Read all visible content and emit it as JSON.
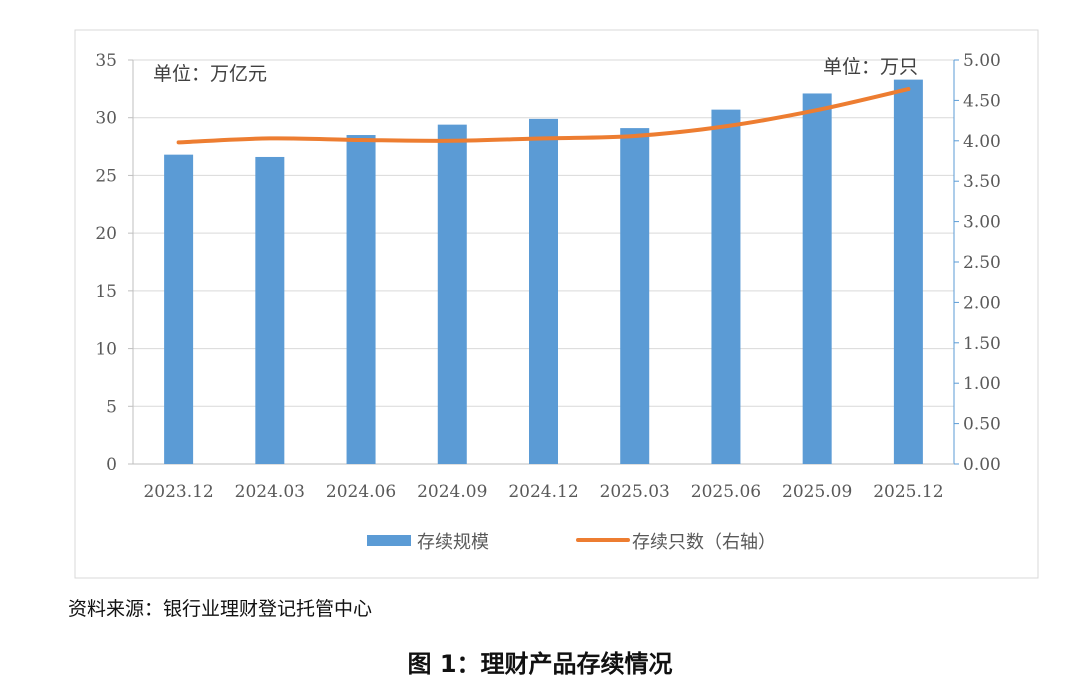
{
  "source_note": "资料来源：银行业理财登记托管中心",
  "figure_caption": "图 1：理财产品存续情况",
  "chart_data": {
    "type": "bar",
    "categories": [
      "2023.12",
      "2024.03",
      "2024.06",
      "2024.09",
      "2024.12",
      "2025.03",
      "2025.06",
      "2025.09",
      "2025.12"
    ],
    "series": [
      {
        "name": "存续规模",
        "type": "bar",
        "axis": "left",
        "color": "#5b9bd5",
        "values": [
          26.8,
          26.6,
          28.5,
          29.4,
          29.9,
          29.1,
          30.7,
          32.1,
          33.3
        ]
      },
      {
        "name": "存续只数（右轴）",
        "type": "line",
        "axis": "right",
        "color": "#ed7d31",
        "values": [
          3.98,
          4.03,
          4.01,
          4.0,
          4.03,
          4.06,
          4.18,
          4.38,
          4.64
        ]
      }
    ],
    "left_axis": {
      "unit_label": "单位：万亿元",
      "ylim": [
        0,
        35
      ],
      "ticks": [
        "0",
        "5",
        "10",
        "15",
        "20",
        "25",
        "30",
        "35"
      ]
    },
    "right_axis": {
      "unit_label": "单位：万只",
      "ylim": [
        0,
        5
      ],
      "ticks": [
        "0.00",
        "0.50",
        "1.00",
        "1.50",
        "2.00",
        "2.50",
        "3.00",
        "3.50",
        "4.00",
        "4.50",
        "5.00"
      ]
    },
    "grid": true,
    "legend_position": "bottom"
  }
}
